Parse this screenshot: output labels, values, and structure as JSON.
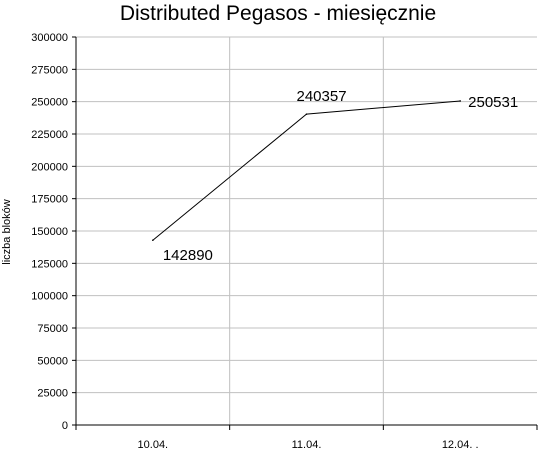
{
  "chart_data": {
    "type": "line",
    "title": "Distributed Pegasos - miesięcznie",
    "xlabel": "",
    "ylabel": "liczba bloków",
    "categories": [
      "10.04.",
      "11.04.",
      "12.04. ."
    ],
    "series": [
      {
        "values": [
          142890,
          240357,
          250531
        ]
      }
    ],
    "data_labels": [
      "142890",
      "240357",
      "250531"
    ],
    "ylim": [
      0,
      300000
    ],
    "yticks": [
      0,
      25000,
      50000,
      75000,
      100000,
      125000,
      150000,
      175000,
      200000,
      225000,
      250000,
      275000,
      300000
    ],
    "grid": true,
    "legend": "none",
    "colors": {
      "line": "#000000",
      "grid": "#c0c0c0",
      "axis": "#000000"
    }
  }
}
